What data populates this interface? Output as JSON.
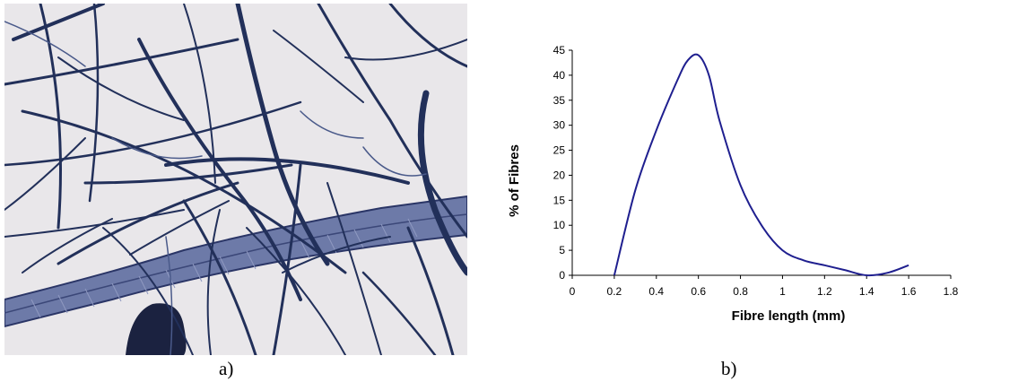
{
  "panels": {
    "a": {
      "label": "a)"
    },
    "b": {
      "label": "b)"
    }
  },
  "micrograph": {
    "background_color": "#e9e7ea",
    "fibre_color": "#22305a",
    "description_icon": "fibre-micrograph-image"
  },
  "chart_data": {
    "type": "line",
    "xlabel": "Fibre   length (mm)",
    "ylabel": "% of Fibres",
    "xlim": [
      0,
      1.8
    ],
    "ylim": [
      0,
      45
    ],
    "xticks": [
      0,
      0.2,
      0.4,
      0.6,
      0.8,
      1,
      1.2,
      1.4,
      1.6,
      1.8
    ],
    "yticks": [
      0,
      5,
      10,
      15,
      20,
      25,
      30,
      35,
      40,
      45
    ],
    "grid": false,
    "line_color": "#1f1f8f",
    "series": [
      {
        "x": [
          0.2,
          0.3,
          0.4,
          0.5,
          0.55,
          0.6,
          0.65,
          0.7,
          0.8,
          0.9,
          1.0,
          1.1,
          1.2,
          1.3,
          1.4,
          1.5,
          1.6
        ],
        "values": [
          0,
          17,
          29,
          39,
          43,
          44,
          40,
          31,
          18,
          10,
          5,
          3,
          2,
          1,
          0,
          0.5,
          2
        ]
      }
    ]
  }
}
